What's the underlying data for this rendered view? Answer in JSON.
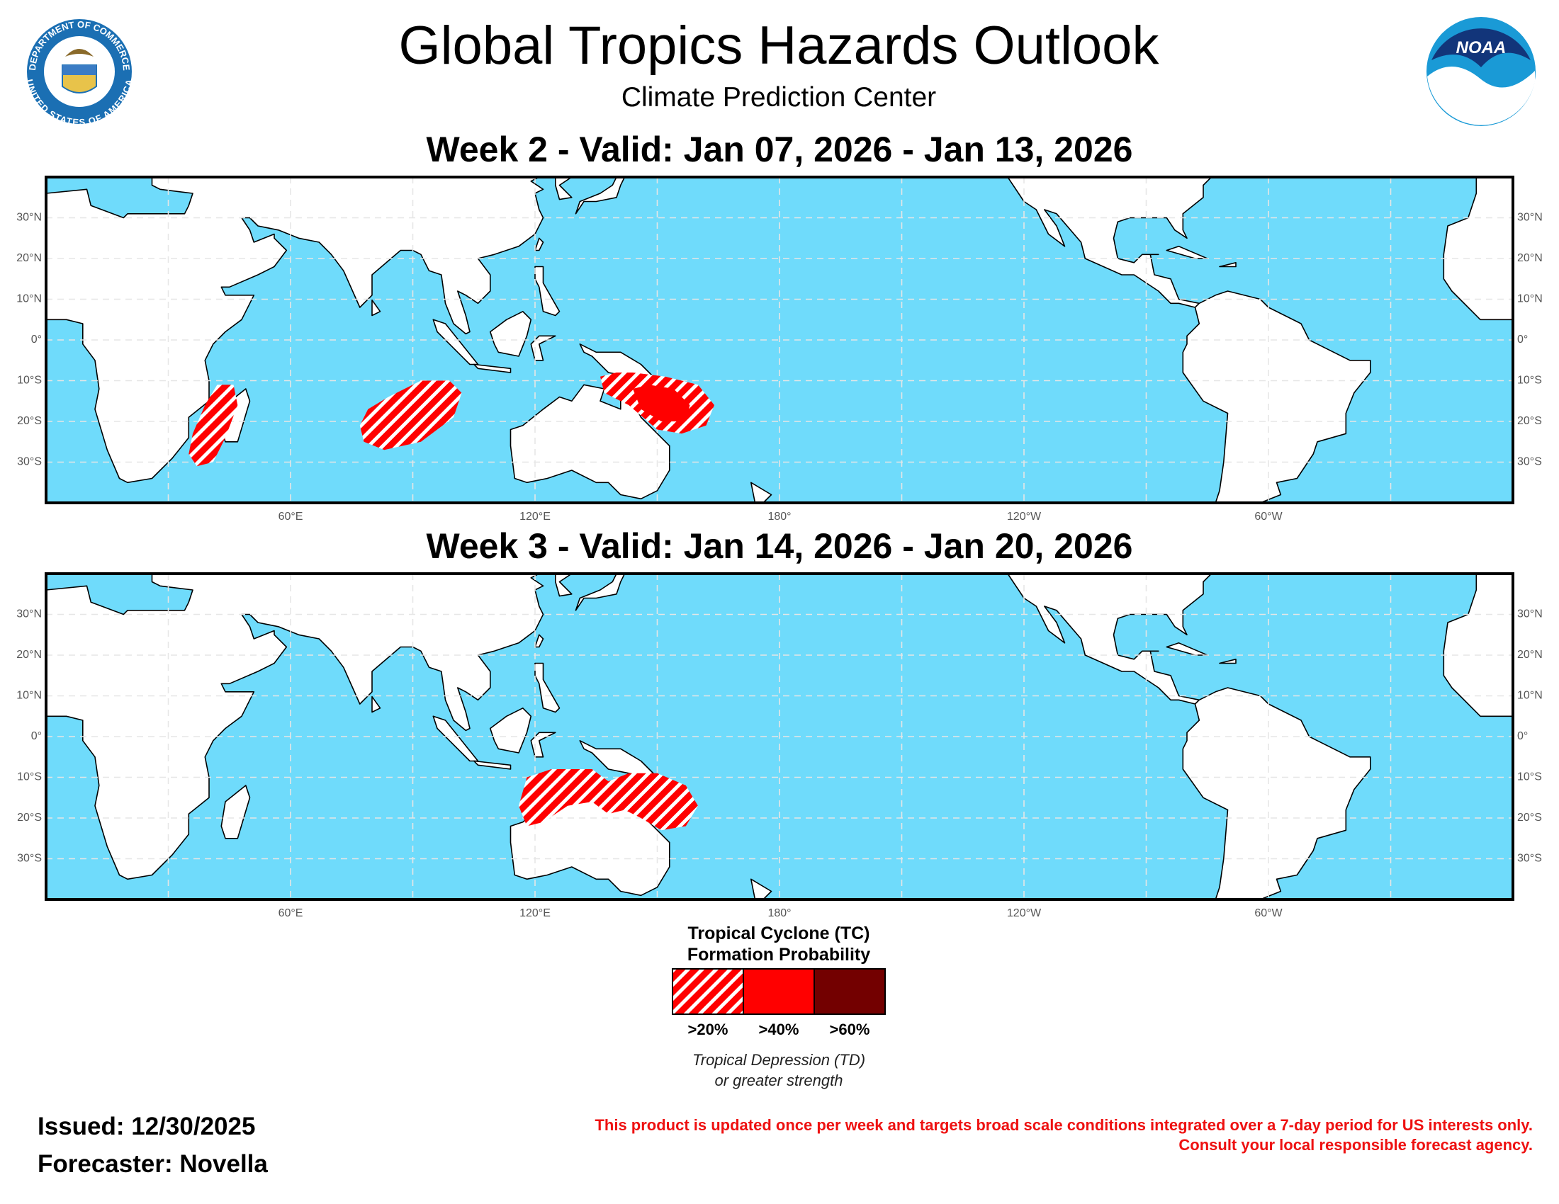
{
  "header": {
    "title": "Global Tropics Hazards Outlook",
    "subtitle": "Climate Prediction Center"
  },
  "logos": {
    "seal_top": "DEPARTMENT OF COMMERCE",
    "seal_bottom": "UNITED STATES OF AMERICA",
    "noaa": "NOAA"
  },
  "map_axes": {
    "lon_range": [
      0,
      360
    ],
    "lat_range": [
      -40,
      40
    ],
    "lon_ticks": [
      {
        "value": 60,
        "label": "60°E"
      },
      {
        "value": 120,
        "label": "120°E"
      },
      {
        "value": 180,
        "label": "180°"
      },
      {
        "value": 240,
        "label": "120°W"
      },
      {
        "value": 300,
        "label": "60°W"
      }
    ],
    "lon_grid": [
      30,
      90,
      150,
      210,
      270,
      330
    ],
    "lat_ticks": [
      {
        "value": 30,
        "label": "30°N"
      },
      {
        "value": 20,
        "label": "20°N"
      },
      {
        "value": 10,
        "label": "10°N"
      },
      {
        "value": 0,
        "label": "0°"
      },
      {
        "value": -10,
        "label": "10°S"
      },
      {
        "value": -20,
        "label": "20°S"
      },
      {
        "value": -30,
        "label": "30°S"
      }
    ]
  },
  "maps": [
    {
      "title": "Week 2 - Valid: Jan 07, 2026 - Jan 13, 2026"
    },
    {
      "title": "Week 3 - Valid: Jan 14, 2026 - Jan 20, 2026"
    }
  ],
  "legend": {
    "title": [
      "Tropical Cyclone (TC)",
      "Formation Probability"
    ],
    "categories": [
      {
        "label": ">20%",
        "color": "#ff0000",
        "pattern": "hatched"
      },
      {
        "label": ">40%",
        "color": "#ff0000"
      },
      {
        "label": ">60%",
        "color": "#730000"
      }
    ],
    "note": [
      "Tropical Depression (TD)",
      "or greater strength"
    ]
  },
  "footer": {
    "issued": "Issued: 12/30/2025",
    "forecaster": "Forecaster: Novella",
    "disclaimer": [
      "This product is updated once per week and targets broad scale conditions integrated over a 7-day period for US interests only.",
      "Consult your local responsible forecast agency."
    ]
  }
}
